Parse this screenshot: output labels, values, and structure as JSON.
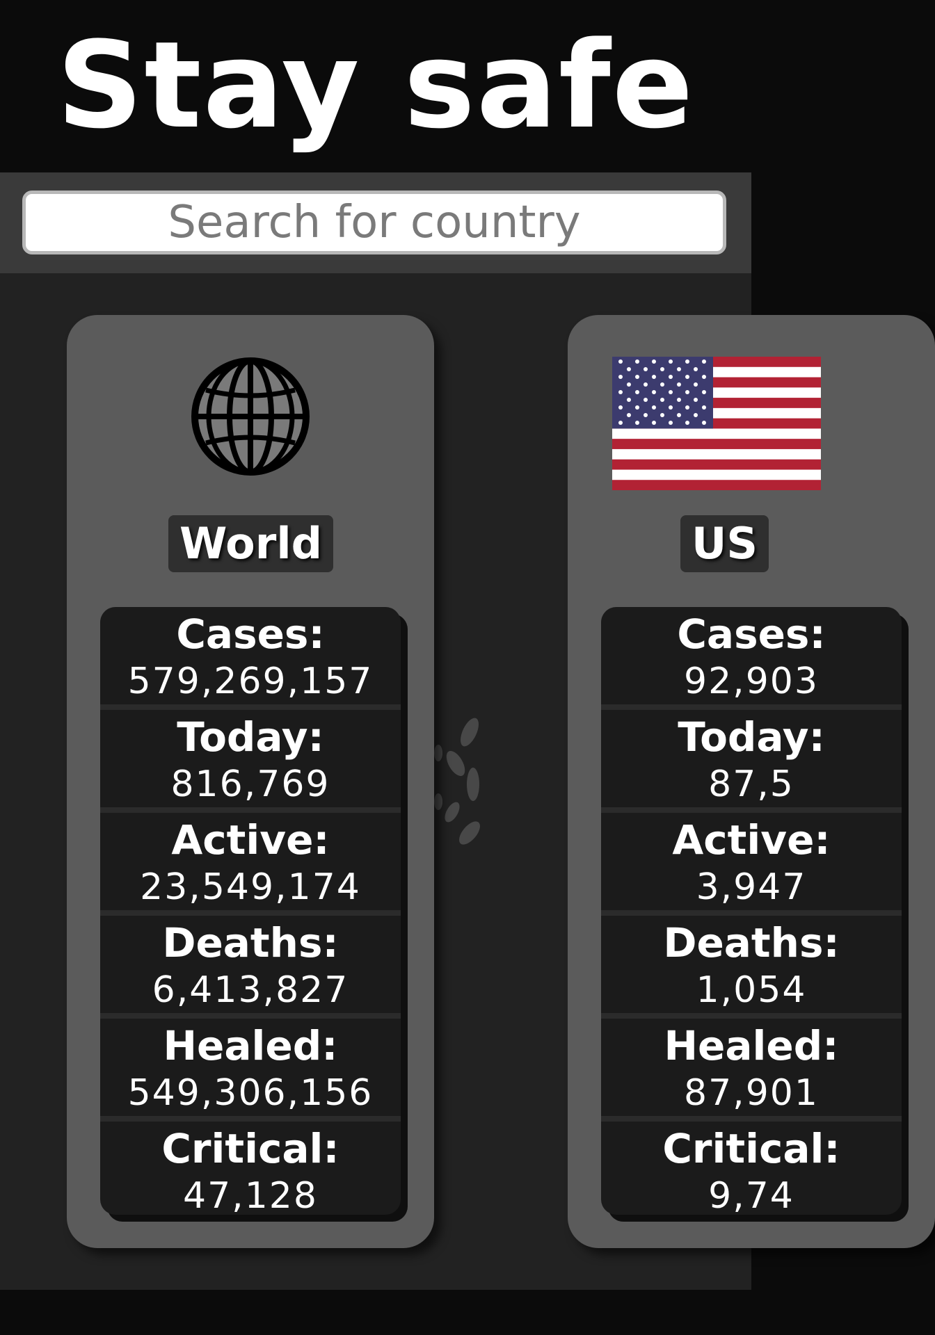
{
  "header": {
    "title": "Stay safe"
  },
  "search": {
    "placeholder": "Search for country",
    "value": ""
  },
  "cards": [
    {
      "name": "World",
      "icon": "globe-icon",
      "stats": [
        {
          "label": "Cases:",
          "value": "579,269,157"
        },
        {
          "label": "Today:",
          "value": "816,769"
        },
        {
          "label": "Active:",
          "value": "23,549,174"
        },
        {
          "label": "Deaths:",
          "value": "6,413,827"
        },
        {
          "label": "Healed:",
          "value": "549,306,156"
        },
        {
          "label": "Critical:",
          "value": "47,128"
        }
      ]
    },
    {
      "name": "US",
      "icon": "us-flag-icon",
      "stats": [
        {
          "label": "Cases:",
          "value": "92,903"
        },
        {
          "label": "Today:",
          "value": "87,5"
        },
        {
          "label": "Active:",
          "value": "3,947"
        },
        {
          "label": "Deaths:",
          "value": "1,054"
        },
        {
          "label": "Healed:",
          "value": "87,901"
        },
        {
          "label": "Critical:",
          "value": "9,74"
        }
      ]
    }
  ],
  "colors": {
    "header_bg": "#0b0b0b",
    "search_bar_bg": "#3a3a3a",
    "content_bg": "#222222",
    "card_bg": "#5b5b5b",
    "stats_bg": "#1b1b1b",
    "flag_red": "#b22234",
    "flag_blue": "#3c3b6e"
  }
}
